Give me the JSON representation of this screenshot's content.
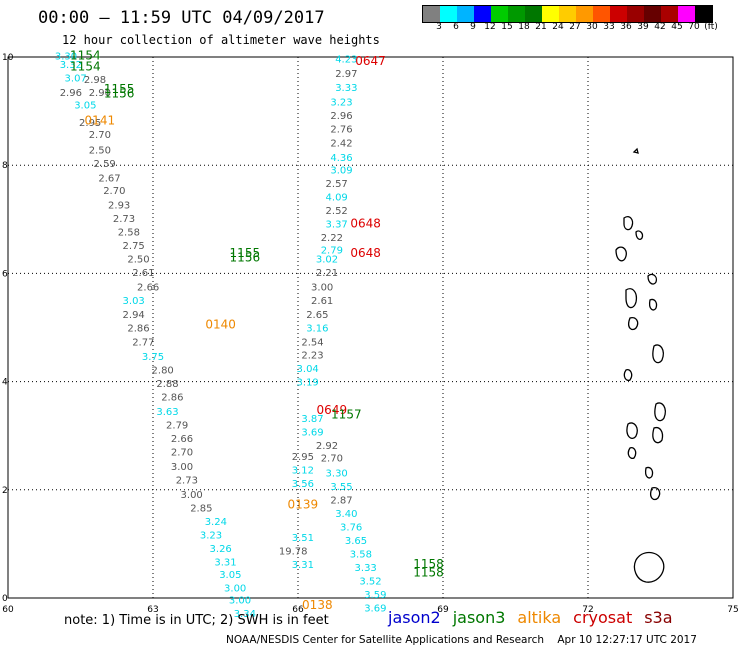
{
  "title": "00:00 – 11:59 UTC 04/09/2017",
  "subtitle": "12 hour collection of altimeter wave heights",
  "colorbar": {
    "colors": [
      "#808080",
      "#00ffff",
      "#00b4ff",
      "#0000ff",
      "#00cc00",
      "#009900",
      "#007700",
      "#ffff00",
      "#ffcc00",
      "#ff9900",
      "#ff5500",
      "#cc0000",
      "#990000",
      "#660000",
      "#aa0000",
      "#ff00ff",
      "#000000"
    ],
    "labels": [
      "3",
      "6",
      "9",
      "12",
      "15",
      "18",
      "21",
      "24",
      "27",
      "30",
      "33",
      "36",
      "39",
      "42",
      "45",
      "70",
      "(ft)"
    ]
  },
  "map": {
    "lon_range": [
      60,
      75
    ],
    "lat_range": [
      0,
      10
    ],
    "lon_ticks": [
      "60",
      "63",
      "66",
      "69",
      "72",
      "75"
    ],
    "lat_ticks": [
      "0",
      "2",
      "4",
      "6",
      "8",
      "10"
    ],
    "grid": "dotted"
  },
  "observations": {
    "track_a": {
      "color_gray": "#555555",
      "values": [
        {
          "lat": 9.95,
          "lon": 61.2,
          "v": "3.30",
          "c": "cyan"
        },
        {
          "lat": 9.8,
          "lon": 61.3,
          "v": "3.32",
          "c": "cyan"
        },
        {
          "lat": 9.55,
          "lon": 61.4,
          "v": "3.07",
          "c": "cyan"
        },
        {
          "lat": 9.52,
          "lon": 61.8,
          "v": "2.98",
          "c": "gray"
        },
        {
          "lat": 9.28,
          "lon": 61.3,
          "v": "2.96",
          "c": "gray"
        },
        {
          "lat": 9.28,
          "lon": 61.9,
          "v": "2.90",
          "c": "gray"
        },
        {
          "lat": 9.05,
          "lon": 61.6,
          "v": "3.05",
          "c": "cyan"
        },
        {
          "lat": 8.72,
          "lon": 61.7,
          "v": "2.95",
          "c": "gray"
        },
        {
          "lat": 8.5,
          "lon": 61.9,
          "v": "2.70",
          "c": "gray"
        },
        {
          "lat": 8.22,
          "lon": 61.9,
          "v": "2.50",
          "c": "gray"
        },
        {
          "lat": 7.97,
          "lon": 62.0,
          "v": "2.59",
          "c": "gray"
        },
        {
          "lat": 7.7,
          "lon": 62.1,
          "v": "2.67",
          "c": "gray"
        },
        {
          "lat": 7.47,
          "lon": 62.2,
          "v": "2.70",
          "c": "gray"
        },
        {
          "lat": 7.2,
          "lon": 62.3,
          "v": "2.93",
          "c": "gray"
        },
        {
          "lat": 6.95,
          "lon": 62.4,
          "v": "2.73",
          "c": "gray"
        },
        {
          "lat": 6.7,
          "lon": 62.5,
          "v": "2.58",
          "c": "gray"
        },
        {
          "lat": 6.45,
          "lon": 62.6,
          "v": "2.75",
          "c": "gray"
        },
        {
          "lat": 6.2,
          "lon": 62.7,
          "v": "2.50",
          "c": "gray"
        },
        {
          "lat": 5.95,
          "lon": 62.8,
          "v": "2.61",
          "c": "gray"
        },
        {
          "lat": 5.68,
          "lon": 62.9,
          "v": "2.66",
          "c": "gray"
        },
        {
          "lat": 5.43,
          "lon": 62.6,
          "v": "3.03",
          "c": "cyan"
        },
        {
          "lat": 5.18,
          "lon": 62.6,
          "v": "2.94",
          "c": "gray"
        },
        {
          "lat": 4.93,
          "lon": 62.7,
          "v": "2.86",
          "c": "gray"
        },
        {
          "lat": 4.67,
          "lon": 62.8,
          "v": "2.77",
          "c": "gray"
        },
        {
          "lat": 4.4,
          "lon": 63.0,
          "v": "3.75",
          "c": "cyan"
        },
        {
          "lat": 4.15,
          "lon": 63.2,
          "v": "2.80",
          "c": "gray"
        },
        {
          "lat": 3.9,
          "lon": 63.3,
          "v": "2.88",
          "c": "gray"
        },
        {
          "lat": 3.65,
          "lon": 63.4,
          "v": "2.86",
          "c": "gray"
        },
        {
          "lat": 3.38,
          "lon": 63.3,
          "v": "3.63",
          "c": "cyan"
        },
        {
          "lat": 3.13,
          "lon": 63.5,
          "v": "2.79",
          "c": "gray"
        },
        {
          "lat": 2.88,
          "lon": 63.6,
          "v": "2.66",
          "c": "gray"
        },
        {
          "lat": 2.63,
          "lon": 63.6,
          "v": "2.70",
          "c": "gray"
        },
        {
          "lat": 2.37,
          "lon": 63.6,
          "v": "3.00",
          "c": "gray"
        },
        {
          "lat": 2.12,
          "lon": 63.7,
          "v": "2.73",
          "c": "gray"
        },
        {
          "lat": 1.85,
          "lon": 63.8,
          "v": "3.00",
          "c": "gray"
        },
        {
          "lat": 1.6,
          "lon": 64.0,
          "v": "2.85",
          "c": "gray"
        },
        {
          "lat": 1.35,
          "lon": 64.3,
          "v": "3.24",
          "c": "cyan"
        },
        {
          "lat": 1.1,
          "lon": 64.2,
          "v": "3.23",
          "c": "cyan"
        },
        {
          "lat": 0.85,
          "lon": 64.4,
          "v": "3.26",
          "c": "cyan"
        },
        {
          "lat": 0.6,
          "lon": 64.5,
          "v": "3.31",
          "c": "cyan"
        },
        {
          "lat": 0.37,
          "lon": 64.6,
          "v": "3.05",
          "c": "cyan"
        },
        {
          "lat": 0.12,
          "lon": 64.7,
          "v": "3.00",
          "c": "cyan"
        },
        {
          "lat": -0.1,
          "lon": 64.8,
          "v": "3.00",
          "c": "cyan"
        },
        {
          "lat": -0.35,
          "lon": 64.9,
          "v": "3.34",
          "c": "cyan"
        }
      ]
    },
    "track_b": {
      "values": [
        {
          "lat": 9.9,
          "lon": 67.0,
          "v": "4.23",
          "c": "cyan"
        },
        {
          "lat": 9.63,
          "lon": 67.0,
          "v": "2.97",
          "c": "gray"
        },
        {
          "lat": 9.37,
          "lon": 67.0,
          "v": "3.33",
          "c": "cyan"
        },
        {
          "lat": 9.1,
          "lon": 66.9,
          "v": "3.23",
          "c": "cyan"
        },
        {
          "lat": 8.85,
          "lon": 66.9,
          "v": "2.96",
          "c": "gray"
        },
        {
          "lat": 8.6,
          "lon": 66.9,
          "v": "2.76",
          "c": "gray"
        },
        {
          "lat": 8.35,
          "lon": 66.9,
          "v": "2.42",
          "c": "gray"
        },
        {
          "lat": 8.08,
          "lon": 66.9,
          "v": "4.36",
          "c": "cyan"
        },
        {
          "lat": 7.85,
          "lon": 66.9,
          "v": "3.09",
          "c": "cyan"
        },
        {
          "lat": 7.6,
          "lon": 66.8,
          "v": "2.57",
          "c": "gray"
        },
        {
          "lat": 7.35,
          "lon": 66.8,
          "v": "4.09",
          "c": "cyan"
        },
        {
          "lat": 7.1,
          "lon": 66.8,
          "v": "2.52",
          "c": "gray"
        },
        {
          "lat": 6.85,
          "lon": 66.8,
          "v": "3.37",
          "c": "cyan"
        },
        {
          "lat": 6.6,
          "lon": 66.7,
          "v": "2.22",
          "c": "gray"
        },
        {
          "lat": 6.37,
          "lon": 66.7,
          "v": "2.79",
          "c": "cyan"
        },
        {
          "lat": 6.2,
          "lon": 66.6,
          "v": "3.02",
          "c": "cyan"
        },
        {
          "lat": 5.95,
          "lon": 66.6,
          "v": "2.21",
          "c": "gray"
        },
        {
          "lat": 5.68,
          "lon": 66.5,
          "v": "3.00",
          "c": "gray"
        },
        {
          "lat": 5.43,
          "lon": 66.5,
          "v": "2.61",
          "c": "gray"
        },
        {
          "lat": 5.18,
          "lon": 66.4,
          "v": "2.65",
          "c": "gray"
        },
        {
          "lat": 4.93,
          "lon": 66.4,
          "v": "3.16",
          "c": "cyan"
        },
        {
          "lat": 4.67,
          "lon": 66.3,
          "v": "2.54",
          "c": "gray"
        },
        {
          "lat": 4.43,
          "lon": 66.3,
          "v": "2.23",
          "c": "gray"
        },
        {
          "lat": 4.18,
          "lon": 66.2,
          "v": "3.04",
          "c": "cyan"
        },
        {
          "lat": 3.93,
          "lon": 66.2,
          "v": "3.19",
          "c": "cyan"
        },
        {
          "lat": 2.55,
          "lon": 66.1,
          "v": "2.95",
          "c": "gray"
        },
        {
          "lat": 2.3,
          "lon": 66.1,
          "v": "3.12",
          "c": "cyan"
        },
        {
          "lat": 2.05,
          "lon": 66.1,
          "v": "3.56",
          "c": "cyan"
        },
        {
          "lat": 1.05,
          "lon": 66.1,
          "v": "3.51",
          "c": "cyan"
        },
        {
          "lat": 0.55,
          "lon": 66.1,
          "v": "3.31",
          "c": "cyan"
        },
        {
          "lat": 0.8,
          "lon": 65.9,
          "v": "19.78",
          "c": "gray"
        }
      ]
    },
    "track_c": {
      "values": [
        {
          "lat": 3.25,
          "lon": 66.3,
          "v": "3.87",
          "c": "cyan"
        },
        {
          "lat": 3.0,
          "lon": 66.3,
          "v": "3.69",
          "c": "cyan"
        },
        {
          "lat": 2.75,
          "lon": 66.6,
          "v": "2.92",
          "c": "gray"
        },
        {
          "lat": 2.52,
          "lon": 66.7,
          "v": "2.70",
          "c": "gray"
        },
        {
          "lat": 2.25,
          "lon": 66.8,
          "v": "3.30",
          "c": "cyan"
        },
        {
          "lat": 2.0,
          "lon": 66.9,
          "v": "3.55",
          "c": "cyan"
        },
        {
          "lat": 1.75,
          "lon": 66.9,
          "v": "2.87",
          "c": "gray"
        },
        {
          "lat": 1.5,
          "lon": 67.0,
          "v": "3.40",
          "c": "cyan"
        },
        {
          "lat": 1.25,
          "lon": 67.1,
          "v": "3.76",
          "c": "cyan"
        },
        {
          "lat": 1.0,
          "lon": 67.2,
          "v": "3.65",
          "c": "cyan"
        },
        {
          "lat": 0.75,
          "lon": 67.3,
          "v": "3.58",
          "c": "cyan"
        },
        {
          "lat": 0.5,
          "lon": 67.4,
          "v": "3.33",
          "c": "cyan"
        },
        {
          "lat": 0.25,
          "lon": 67.5,
          "v": "3.52",
          "c": "cyan"
        },
        {
          "lat": 0.0,
          "lon": 67.6,
          "v": "3.59",
          "c": "cyan"
        },
        {
          "lat": -0.25,
          "lon": 67.6,
          "v": "3.69",
          "c": "cyan"
        }
      ]
    }
  },
  "pass_times": [
    {
      "lat": 9.95,
      "lon": 61.6,
      "v": "1154",
      "c": "#007700"
    },
    {
      "lat": 9.75,
      "lon": 61.6,
      "v": "1154",
      "c": "#007700"
    },
    {
      "lat": 9.33,
      "lon": 62.3,
      "v": "1155",
      "c": "#007700"
    },
    {
      "lat": 9.25,
      "lon": 62.3,
      "v": "1156",
      "c": "#007700"
    },
    {
      "lat": 8.75,
      "lon": 61.9,
      "v": "0141",
      "c": "#ee8800"
    },
    {
      "lat": 9.85,
      "lon": 67.5,
      "v": "0647",
      "c": "#dd0000"
    },
    {
      "lat": 6.85,
      "lon": 67.4,
      "v": "0648",
      "c": "#dd0000"
    },
    {
      "lat": 6.3,
      "lon": 67.4,
      "v": "0648",
      "c": "#dd0000"
    },
    {
      "lat": 6.3,
      "lon": 64.9,
      "v": "1155",
      "c": "#007700"
    },
    {
      "lat": 6.22,
      "lon": 64.9,
      "v": "1156",
      "c": "#007700"
    },
    {
      "lat": 4.98,
      "lon": 64.4,
      "v": "0140",
      "c": "#ee8800"
    },
    {
      "lat": 3.4,
      "lon": 66.7,
      "v": "0649",
      "c": "#dd0000"
    },
    {
      "lat": 3.32,
      "lon": 67.0,
      "v": "1157",
      "c": "#007700"
    },
    {
      "lat": 1.65,
      "lon": 66.1,
      "v": "0139",
      "c": "#ee8800"
    },
    {
      "lat": 0.55,
      "lon": 68.7,
      "v": "1158",
      "c": "#007700"
    },
    {
      "lat": 0.4,
      "lon": 68.7,
      "v": "1158",
      "c": "#007700"
    },
    {
      "lat": -0.2,
      "lon": 66.4,
      "v": "0138",
      "c": "#ee8800"
    }
  ],
  "note": "note: 1) Time is in UTC; 2) SWH is in feet",
  "legend": [
    {
      "label": "jason2",
      "color": "#0000cc"
    },
    {
      "label": "jason3",
      "color": "#007700"
    },
    {
      "label": "altika",
      "color": "#ee8800"
    },
    {
      "label": "cryosat",
      "color": "#cc0000"
    },
    {
      "label": "s3a",
      "color": "#880000"
    }
  ],
  "credit": "NOAA/NESDIS Center for Satellite Applications and Research    Apr 10 12:27:17 UTC 2017"
}
